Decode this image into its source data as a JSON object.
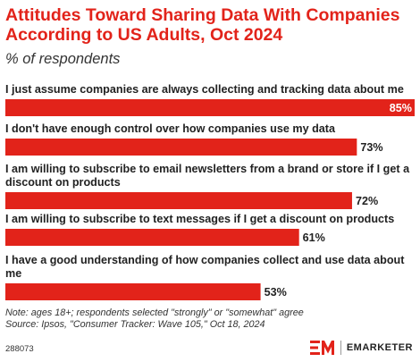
{
  "chart_data": {
    "type": "bar",
    "orientation": "horizontal",
    "title": "Attitudes Toward Sharing Data With Companies According to US Adults, Oct 2024",
    "subtitle": "% of respondents",
    "categories": [
      [
        "I just assume companies are always collecting and tracking data about me"
      ],
      [
        "I don't have enough control over how companies use my data"
      ],
      [
        "I am willing to subscribe to email newsletters from a brand or store if I get a",
        "discount on products"
      ],
      [
        "I am willing to subscribe to text messages if I get a discount on products"
      ],
      [
        "I have a good understanding of how companies collect and use data about",
        "me"
      ]
    ],
    "values": [
      85,
      73,
      72,
      61,
      53
    ],
    "value_labels": [
      "85%",
      "73%",
      "72%",
      "61%",
      "53%"
    ],
    "xlim": [
      0,
      85
    ],
    "grid": false,
    "legend": "none",
    "bar_color": "#e2231a"
  },
  "footnote": {
    "note": "Note: ages 18+; respondents selected \"strongly\" or \"somewhat\" agree",
    "source": "Source: Ipsos, \"Consumer Tracker: Wave 105,\" Oct 18, 2024"
  },
  "chart_id": "288073",
  "brand": {
    "name": "EMARKETER",
    "logo_icon": "em-logo-icon",
    "logo_color": "#e2231a"
  }
}
